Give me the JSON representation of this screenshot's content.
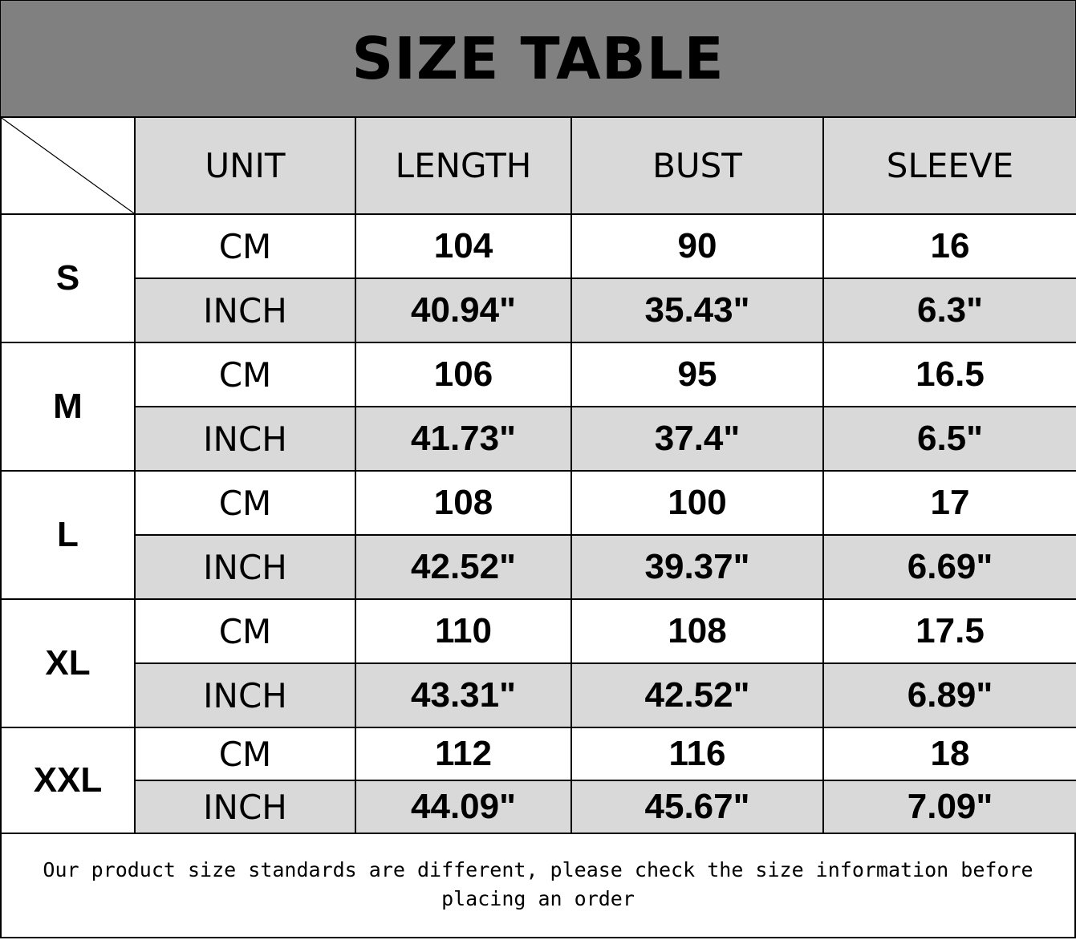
{
  "title": "SIZE TABLE",
  "headers": [
    "UNIT",
    "LENGTH",
    "BUST",
    "SLEEVE"
  ],
  "rows": [
    {
      "size": "S",
      "cm": {
        "unit": "CM",
        "length": "104",
        "bust": "90",
        "sleeve": "16"
      },
      "inch": {
        "unit": "INCH",
        "length": "40.94\"",
        "bust": "35.43\"",
        "sleeve": "6.3\""
      }
    },
    {
      "size": "M",
      "cm": {
        "unit": "CM",
        "length": "106",
        "bust": "95",
        "sleeve": "16.5"
      },
      "inch": {
        "unit": "INCH",
        "length": "41.73\"",
        "bust": "37.4\"",
        "sleeve": "6.5\""
      }
    },
    {
      "size": "L",
      "cm": {
        "unit": "CM",
        "length": "108",
        "bust": "100",
        "sleeve": "17"
      },
      "inch": {
        "unit": "INCH",
        "length": "42.52\"",
        "bust": "39.37\"",
        "sleeve": "6.69\""
      }
    },
    {
      "size": "XL",
      "cm": {
        "unit": "CM",
        "length": "110",
        "bust": "108",
        "sleeve": "17.5"
      },
      "inch": {
        "unit": "INCH",
        "length": "43.31\"",
        "bust": "42.52\"",
        "sleeve": "6.89\""
      }
    },
    {
      "size": "XXL",
      "cm": {
        "unit": "CM",
        "length": "112",
        "bust": "116",
        "sleeve": "18"
      },
      "inch": {
        "unit": "INCH",
        "length": "44.09\"",
        "bust": "45.67\"",
        "sleeve": "7.09\""
      }
    }
  ],
  "footer": "Our product size standards are different, please check the size information before placing an order"
}
